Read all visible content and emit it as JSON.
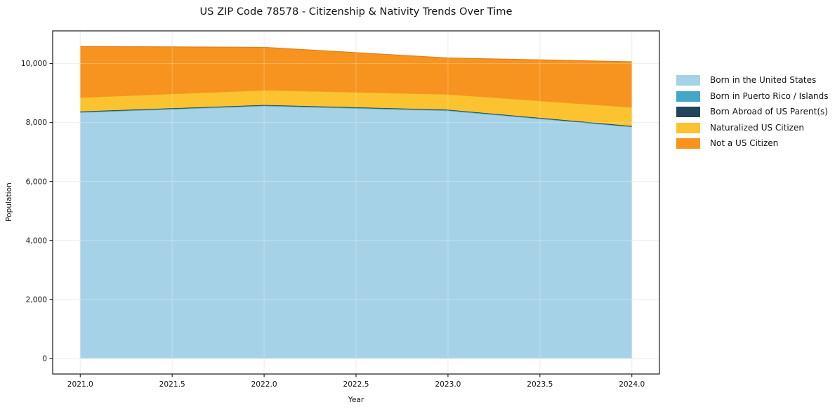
{
  "page": {
    "background": "#ffffff"
  },
  "chart": {
    "title": "US ZIP Code 78578 - Citizenship & Nativity Trends Over Time",
    "xlabel": "Year",
    "ylabel": "Population"
  },
  "chart_data": {
    "type": "area",
    "stacked": true,
    "title": "US ZIP Code 78578 - Citizenship & Nativity Trends Over Time",
    "xlabel": "Year",
    "ylabel": "Population",
    "x": [
      2021,
      2022,
      2023,
      2024
    ],
    "series": [
      {
        "name": "Born in the United States",
        "values": [
          8340,
          8560,
          8400,
          7850
        ],
        "color": "#a6d2e8",
        "edge": "#82bcd9"
      },
      {
        "name": "Born in Puerto Rico / Islands",
        "values": [
          20,
          20,
          20,
          15
        ],
        "color": "#45a6c6",
        "edge": "#3893b1"
      },
      {
        "name": "Born Abroad of US Parent(s)",
        "values": [
          15,
          15,
          15,
          15
        ],
        "color": "#21455a",
        "edge": "#1b3a4c"
      },
      {
        "name": "Naturalized US Citizen",
        "values": [
          475,
          505,
          525,
          640
        ],
        "color": "#fcc330",
        "edge": "#eda31a"
      },
      {
        "name": "Not a US Citizen",
        "values": [
          1730,
          1450,
          1230,
          1540
        ],
        "color": "#f6941f",
        "edge": "#e2811a"
      }
    ],
    "xlim": [
      2020.85,
      2024.15
    ],
    "ylim": [
      -529,
      11109
    ],
    "xticks": [
      2021.0,
      2021.5,
      2022.0,
      2022.5,
      2023.0,
      2023.5,
      2024.0
    ],
    "yticks": [
      0,
      2000,
      4000,
      6000,
      8000,
      10000
    ],
    "grid": true,
    "grid_color": "#e8e8e8",
    "spine_color": "#1a1a1a",
    "tick_label_color": "#151515",
    "legend_position": "right outside"
  }
}
